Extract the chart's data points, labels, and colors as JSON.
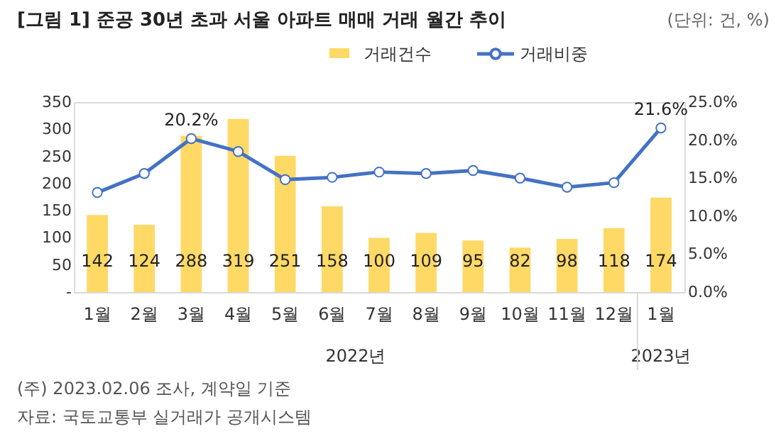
{
  "chart_data": {
    "type": "bar",
    "title": "[그림 1] 준공 30년 초과 서울 아파트 매매 거래 월간 추이",
    "subtitle": "(단위: 건, %)",
    "categories": [
      "1월",
      "2월",
      "3월",
      "4월",
      "5월",
      "6월",
      "7월",
      "8월",
      "9월",
      "10월",
      "11월",
      "12월",
      "1월"
    ],
    "series": [
      {
        "name": "거래건수",
        "color": "#ffd966",
        "values": [
          142,
          124,
          288,
          319,
          251,
          158,
          100,
          109,
          95,
          82,
          98,
          118,
          174
        ],
        "value_labels": [
          "142",
          "124",
          "288",
          "319",
          "251",
          "158",
          "100",
          "109",
          "95",
          "82",
          "98",
          "118",
          "174"
        ]
      },
      {
        "name": "거래비중",
        "type": "line",
        "axis": "y2",
        "color": "#4472c4",
        "marker": "circle",
        "values": [
          13.1,
          15.6,
          20.2,
          18.5,
          14.8,
          15.1,
          15.8,
          15.6,
          16.0,
          15.0,
          13.8,
          14.4,
          21.6
        ],
        "value_labels": [
          null,
          null,
          "20.2%",
          null,
          null,
          null,
          null,
          null,
          null,
          null,
          null,
          null,
          "21.6%"
        ]
      }
    ],
    "ylim": [
      0,
      350
    ],
    "yticks": [
      {
        "value": 0,
        "label": "-"
      },
      50,
      100,
      150,
      200,
      250,
      300,
      350
    ],
    "y2lim": [
      0,
      25
    ],
    "y2ticks": [
      {
        "value": 0,
        "label": "0.0%"
      },
      {
        "value": 5,
        "label": "5.0%"
      },
      {
        "value": 10,
        "label": "10.0%"
      },
      {
        "value": 15,
        "label": "15.0%"
      },
      {
        "value": 20,
        "label": "20.0%"
      },
      {
        "value": 25,
        "label": "25.0%"
      }
    ],
    "legend": "top",
    "annotations": [
      "2022년",
      "2023년",
      "(주) 2023.02.06 조사, 계약일 기준",
      "자료: 국토교통부 실거래가 공개시스템"
    ]
  }
}
